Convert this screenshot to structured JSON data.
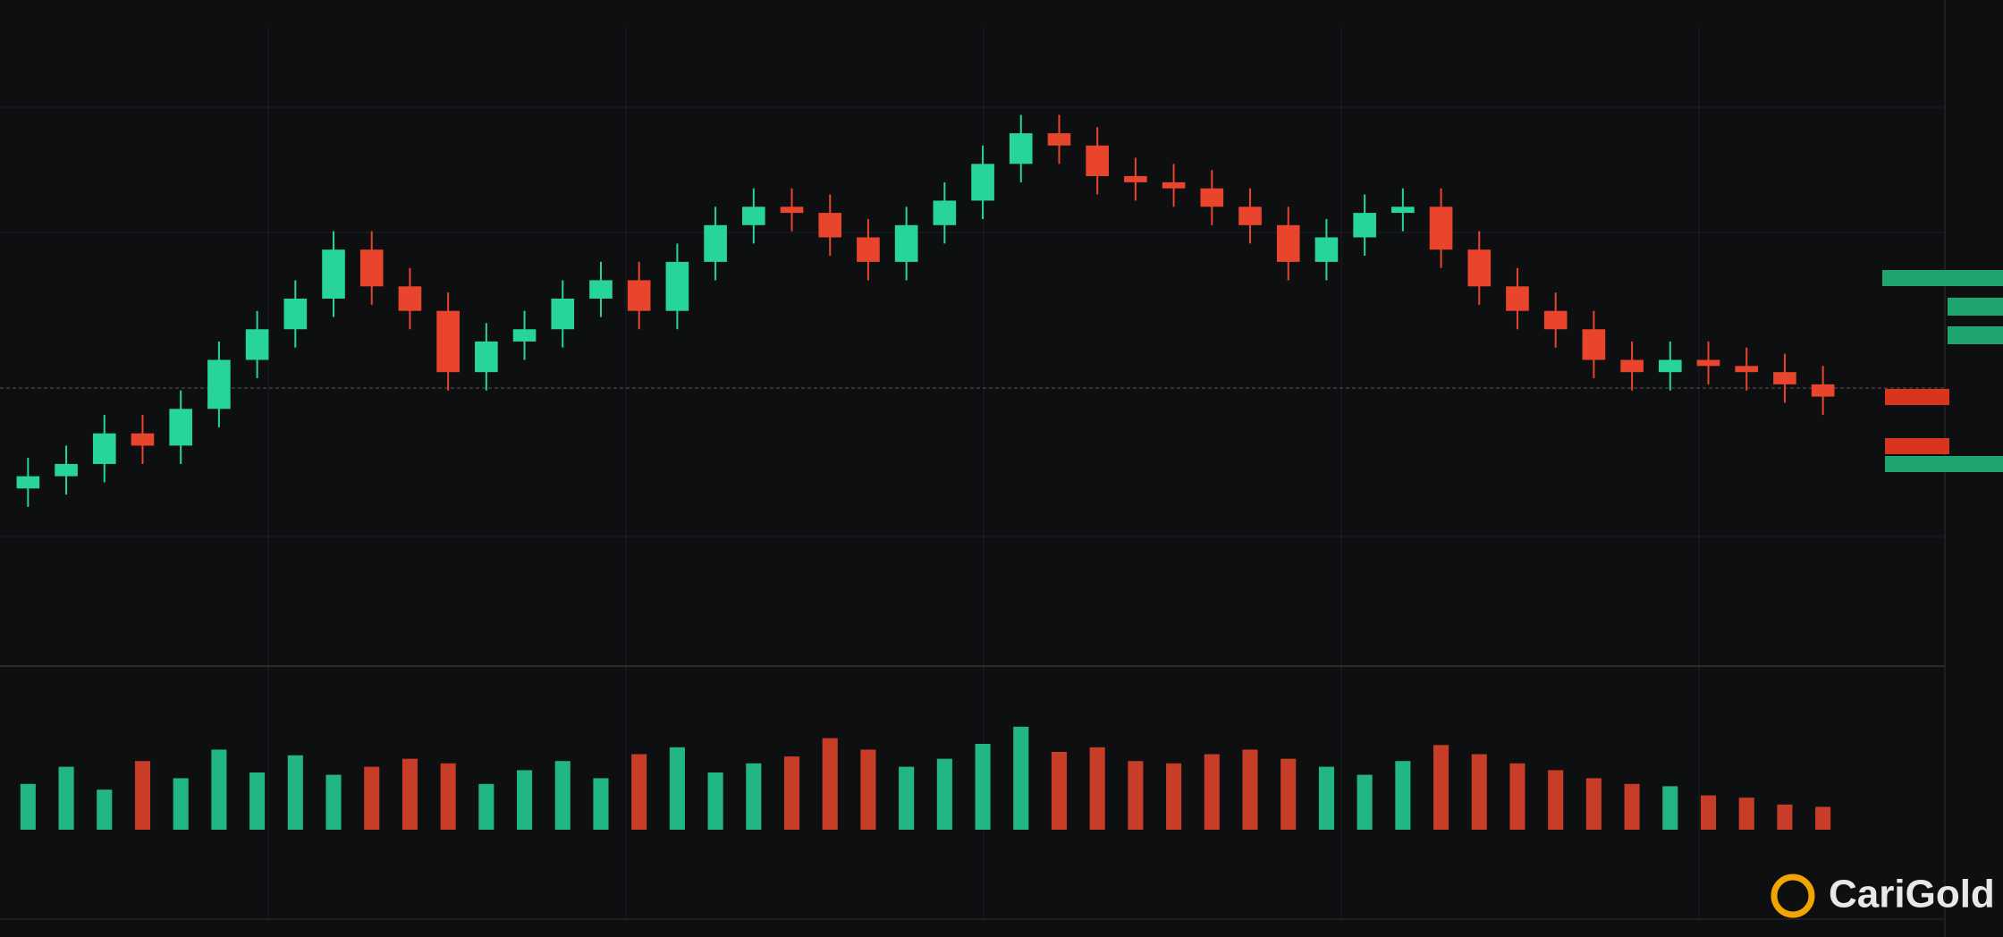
{
  "chart_data": {
    "type": "candlestick",
    "open": [
      29,
      31,
      33,
      38,
      36,
      42,
      50,
      55,
      60,
      68,
      62,
      58,
      48,
      53,
      55,
      60,
      63,
      58,
      66,
      72,
      75,
      74,
      70,
      66,
      72,
      76,
      82,
      87,
      85,
      80,
      79,
      78,
      75,
      72,
      66,
      70,
      74,
      75,
      68,
      62,
      58,
      55,
      50,
      48,
      50,
      49,
      48,
      46
    ],
    "high": [
      34,
      36,
      41,
      41,
      45,
      53,
      58,
      63,
      71,
      71,
      65,
      61,
      56,
      58,
      63,
      66,
      66,
      69,
      75,
      78,
      78,
      77,
      73,
      75,
      79,
      85,
      90,
      90,
      88,
      83,
      82,
      81,
      78,
      75,
      73,
      77,
      78,
      78,
      71,
      65,
      61,
      58,
      53,
      53,
      53,
      52,
      51,
      49
    ],
    "low": [
      26,
      28,
      30,
      33,
      33,
      39,
      47,
      52,
      57,
      59,
      55,
      45,
      45,
      50,
      52,
      57,
      55,
      55,
      63,
      69,
      71,
      67,
      63,
      63,
      69,
      73,
      79,
      82,
      77,
      76,
      75,
      72,
      69,
      63,
      63,
      67,
      71,
      65,
      59,
      55,
      52,
      47,
      45,
      45,
      46,
      45,
      43,
      41
    ],
    "close": [
      31,
      33,
      38,
      36,
      42,
      50,
      55,
      60,
      68,
      62,
      58,
      48,
      53,
      55,
      60,
      63,
      58,
      66,
      72,
      75,
      74,
      70,
      66,
      72,
      76,
      82,
      87,
      85,
      80,
      79,
      78,
      75,
      72,
      66,
      70,
      74,
      75,
      68,
      62,
      58,
      55,
      50,
      48,
      50,
      49,
      48,
      46,
      44
    ],
    "volume": [
      40,
      55,
      35,
      60,
      45,
      70,
      50,
      65,
      48,
      55,
      62,
      58,
      40,
      52,
      60,
      45,
      66,
      72,
      50,
      58,
      64,
      80,
      70,
      55,
      62,
      75,
      90,
      68,
      72,
      60,
      58,
      66,
      70,
      62,
      55,
      48,
      60,
      74,
      66,
      58,
      52,
      45,
      40,
      38,
      30,
      28,
      22,
      20
    ],
    "up_color": "#27d49a",
    "down_color": "#e8452c",
    "ylim": [
      0,
      100
    ],
    "volume_ylim": [
      0,
      100
    ],
    "watermark": "CariGold"
  }
}
